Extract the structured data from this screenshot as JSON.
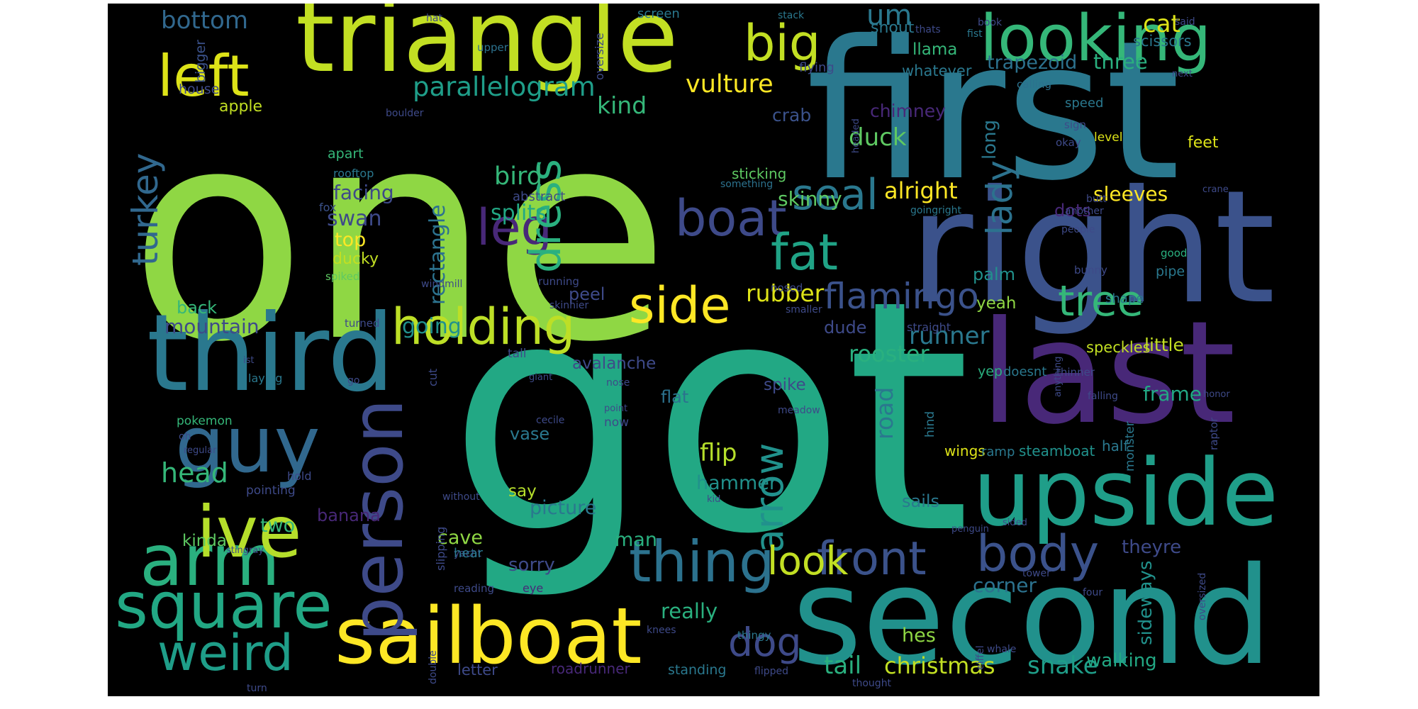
{
  "wordcloud": {
    "background": "#000000",
    "palette": "viridis",
    "words": [
      {
        "text": "one",
        "color": "#8fd744"
      },
      {
        "text": "got",
        "color": "#22a884"
      },
      {
        "text": "first",
        "color": "#2a788e"
      },
      {
        "text": "right",
        "color": "#3b528b"
      },
      {
        "text": "second",
        "color": "#21918c"
      },
      {
        "text": "last",
        "color": "#482878"
      },
      {
        "text": "triangle",
        "color": "#c2df23"
      },
      {
        "text": "third",
        "color": "#2a788e"
      },
      {
        "text": "upside",
        "color": "#1f9e89"
      },
      {
        "text": "guy",
        "color": "#31688e"
      },
      {
        "text": "sailboat",
        "color": "#fde725"
      },
      {
        "text": "looking",
        "color": "#35b779"
      },
      {
        "text": "square",
        "color": "#22a884"
      },
      {
        "text": "arm",
        "color": "#2ab07f"
      },
      {
        "text": "ive",
        "color": "#b5de2b"
      },
      {
        "text": "person",
        "color": "#3e4a89"
      },
      {
        "text": "big",
        "color": "#c2df23"
      },
      {
        "text": "left",
        "color": "#dde318"
      },
      {
        "text": "holding",
        "color": "#bddf26"
      },
      {
        "text": "thing",
        "color": "#2c728e"
      },
      {
        "text": "body",
        "color": "#3b528b"
      },
      {
        "text": "front",
        "color": "#3b528b"
      },
      {
        "text": "weird",
        "color": "#1f9e89"
      },
      {
        "text": "boat",
        "color": "#3e4a89"
      },
      {
        "text": "seal",
        "color": "#2a788e"
      },
      {
        "text": "fat",
        "color": "#20a386"
      },
      {
        "text": "side",
        "color": "#fde725"
      },
      {
        "text": "leg",
        "color": "#482878"
      },
      {
        "text": "dress",
        "color": "#2ab07f"
      },
      {
        "text": "arrow",
        "color": "#21918c"
      },
      {
        "text": "look",
        "color": "#c2df23"
      },
      {
        "text": "dog",
        "color": "#3e4a89"
      },
      {
        "text": "tree",
        "color": "#35b779"
      },
      {
        "text": "turkey",
        "color": "#31688e"
      },
      {
        "text": "flamingo",
        "color": "#3b528b"
      },
      {
        "text": "lady",
        "color": "#2c728e"
      },
      {
        "text": "parallelogram",
        "color": "#1f9e89"
      },
      {
        "text": "bottom",
        "color": "#31688e"
      },
      {
        "text": "vulture",
        "color": "#fde725"
      },
      {
        "text": "runner",
        "color": "#2a788e"
      },
      {
        "text": "rubber",
        "color": "#dde318"
      },
      {
        "text": "rooster",
        "color": "#2ab07f"
      },
      {
        "text": "road",
        "color": "#2a788e"
      },
      {
        "text": "christmas",
        "color": "#c2df23"
      },
      {
        "text": "snake",
        "color": "#1f9e89"
      },
      {
        "text": "tail",
        "color": "#2ab07f"
      },
      {
        "text": "head",
        "color": "#35b779"
      },
      {
        "text": "kind",
        "color": "#35b779"
      },
      {
        "text": "mountain",
        "color": "#3e4a89"
      },
      {
        "text": "rectangle",
        "color": "#2c728e"
      },
      {
        "text": "bird",
        "color": "#35b779"
      },
      {
        "text": "splits",
        "color": "#22a884"
      },
      {
        "text": "going",
        "color": "#21918c"
      },
      {
        "text": "duck",
        "color": "#5ec962"
      },
      {
        "text": "alright",
        "color": "#fde725"
      },
      {
        "text": "skinny",
        "color": "#5ec962"
      },
      {
        "text": "flip",
        "color": "#b5de2b"
      },
      {
        "text": "hammer",
        "color": "#21918c"
      },
      {
        "text": "picture",
        "color": "#2a788e"
      },
      {
        "text": "man",
        "color": "#2ab07f"
      },
      {
        "text": "cave",
        "color": "#8fd744"
      },
      {
        "text": "sorry",
        "color": "#3e4a89"
      },
      {
        "text": "really",
        "color": "#2ab07f"
      },
      {
        "text": "hes",
        "color": "#8fd744"
      },
      {
        "text": "corner",
        "color": "#2c728e"
      },
      {
        "text": "walking",
        "color": "#22a884"
      },
      {
        "text": "sideways",
        "color": "#21918c"
      },
      {
        "text": "theyre",
        "color": "#3e4a89"
      },
      {
        "text": "frame",
        "color": "#22a884"
      },
      {
        "text": "little",
        "color": "#c2df23"
      },
      {
        "text": "speckles",
        "color": "#c2df23"
      },
      {
        "text": "sleeves",
        "color": "#fde725"
      },
      {
        "text": "dots",
        "color": "#482878"
      },
      {
        "text": "cat",
        "color": "#dde318"
      },
      {
        "text": "scissors",
        "color": "#2a788e"
      },
      {
        "text": "three",
        "color": "#2ab07f"
      },
      {
        "text": "trapezoid",
        "color": "#2c728e"
      },
      {
        "text": "llama",
        "color": "#35b779"
      },
      {
        "text": "snout",
        "color": "#2a788e"
      },
      {
        "text": "whatever",
        "color": "#2a788e"
      },
      {
        "text": "chimney",
        "color": "#482878"
      },
      {
        "text": "crab",
        "color": "#3b528b"
      },
      {
        "text": "long",
        "color": "#2a788e"
      },
      {
        "text": "palm",
        "color": "#21918c"
      },
      {
        "text": "yeah",
        "color": "#8fd744"
      },
      {
        "text": "dude",
        "color": "#3e4a89"
      },
      {
        "text": "spike",
        "color": "#3e4a89"
      },
      {
        "text": "peel",
        "color": "#3e4a89"
      },
      {
        "text": "avalanche",
        "color": "#3e4a89"
      },
      {
        "text": "flat",
        "color": "#2c728e"
      },
      {
        "text": "vase",
        "color": "#2a788e"
      },
      {
        "text": "say",
        "color": "#b5de2b"
      },
      {
        "text": "banana",
        "color": "#482878"
      },
      {
        "text": "two",
        "color": "#35b779"
      },
      {
        "text": "kinda",
        "color": "#5ec962"
      },
      {
        "text": "back",
        "color": "#35b779"
      },
      {
        "text": "top",
        "color": "#fde725"
      },
      {
        "text": "swan",
        "color": "#3e4a89"
      },
      {
        "text": "facing",
        "color": "#3e4a89"
      },
      {
        "text": "ducky",
        "color": "#c2df23"
      },
      {
        "text": "apple",
        "color": "#c2df23"
      },
      {
        "text": "house",
        "color": "#3e4a89"
      },
      {
        "text": "bigger",
        "color": "#3b528b"
      },
      {
        "text": "apart",
        "color": "#35b779"
      },
      {
        "text": "rooftop",
        "color": "#2a788e"
      },
      {
        "text": "fox",
        "color": "#3b528b"
      },
      {
        "text": "spiked",
        "color": "#5ec962"
      },
      {
        "text": "abstract",
        "color": "#3e4a89"
      },
      {
        "text": "sticking",
        "color": "#5ec962"
      },
      {
        "text": "something",
        "color": "#2c728e"
      },
      {
        "text": "flying",
        "color": "#3e4a89"
      },
      {
        "text": "upper",
        "color": "#2c728e"
      },
      {
        "text": "oversize",
        "color": "#3e4a89"
      },
      {
        "text": "screen",
        "color": "#2a788e"
      },
      {
        "text": "stack",
        "color": "#2a788e"
      },
      {
        "text": "hat",
        "color": "#3e4a89"
      },
      {
        "text": "book",
        "color": "#3e4a89"
      },
      {
        "text": "thats",
        "color": "#3e4a89"
      },
      {
        "text": "fist",
        "color": "#2a788e"
      },
      {
        "text": "said",
        "color": "#3e4a89"
      },
      {
        "text": "next",
        "color": "#3e4a89"
      },
      {
        "text": "calling",
        "color": "#2c728e"
      },
      {
        "text": "boulder",
        "color": "#3e4a89"
      },
      {
        "text": "headed",
        "color": "#3e4a89"
      },
      {
        "text": "level",
        "color": "#dde318"
      },
      {
        "text": "speed",
        "color": "#2a788e"
      },
      {
        "text": "sign",
        "color": "#3e4a89"
      },
      {
        "text": "okay",
        "color": "#3e4a89"
      },
      {
        "text": "feet",
        "color": "#dde318"
      },
      {
        "text": "crane",
        "color": "#3e4a89"
      },
      {
        "text": "butt",
        "color": "#3e4a89"
      },
      {
        "text": "goingright",
        "color": "#2a788e"
      },
      {
        "text": "another",
        "color": "#3e4a89"
      },
      {
        "text": "people",
        "color": "#3e4a89"
      },
      {
        "text": "bunny",
        "color": "#3e4a89"
      },
      {
        "text": "good",
        "color": "#2ab07f"
      },
      {
        "text": "pipe",
        "color": "#2a788e"
      },
      {
        "text": "nosed",
        "color": "#3e4a89"
      },
      {
        "text": "running",
        "color": "#3e4a89"
      },
      {
        "text": "skinnier",
        "color": "#3e4a89"
      },
      {
        "text": "windmill",
        "color": "#3e4a89"
      },
      {
        "text": "smaller",
        "color": "#3e4a89"
      },
      {
        "text": "turned",
        "color": "#3e4a89"
      },
      {
        "text": "straight",
        "color": "#3e4a89"
      },
      {
        "text": "shape",
        "color": "#2a788e"
      },
      {
        "text": "ist",
        "color": "#3e4a89"
      },
      {
        "text": "tall",
        "color": "#3e4a89"
      },
      {
        "text": "laying",
        "color": "#2a788e"
      },
      {
        "text": "cut",
        "color": "#3e4a89"
      },
      {
        "text": "giant",
        "color": "#3e4a89"
      },
      {
        "text": "go",
        "color": "#3e4a89"
      },
      {
        "text": "nose",
        "color": "#3e4a89"
      },
      {
        "text": "yep",
        "color": "#2ab07f"
      },
      {
        "text": "doesnt",
        "color": "#2a788e"
      },
      {
        "text": "thinner",
        "color": "#3e4a89"
      },
      {
        "text": "anything",
        "color": "#3e4a89"
      },
      {
        "text": "falling",
        "color": "#3e4a89"
      },
      {
        "text": "honor",
        "color": "#3e4a89"
      },
      {
        "text": "raptor",
        "color": "#3e4a89"
      },
      {
        "text": "monster",
        "color": "#2a788e"
      },
      {
        "text": "hind",
        "color": "#2a788e"
      },
      {
        "text": "meadow",
        "color": "#3e4a89"
      },
      {
        "text": "pokemon",
        "color": "#35b779"
      },
      {
        "text": "oh",
        "color": "#3e4a89"
      },
      {
        "text": "regular",
        "color": "#3e4a89"
      },
      {
        "text": "cecile",
        "color": "#3e4a89"
      },
      {
        "text": "point",
        "color": "#3e4a89"
      },
      {
        "text": "now",
        "color": "#3e4a89"
      },
      {
        "text": "wings",
        "color": "#dde318"
      },
      {
        "text": "ramp",
        "color": "#2a788e"
      },
      {
        "text": "steamboat",
        "color": "#21918c"
      },
      {
        "text": "half",
        "color": "#2a788e"
      },
      {
        "text": "hold",
        "color": "#3e4a89"
      },
      {
        "text": "pointing",
        "color": "#3e4a89"
      },
      {
        "text": "sails",
        "color": "#2a788e"
      },
      {
        "text": "without",
        "color": "#3e4a89"
      },
      {
        "text": "kid",
        "color": "#3e4a89"
      },
      {
        "text": "stingray",
        "color": "#3e4a89"
      },
      {
        "text": "slipping",
        "color": "#3e4a89"
      },
      {
        "text": "yacht",
        "color": "#3e4a89"
      },
      {
        "text": "penguin",
        "color": "#3e4a89"
      },
      {
        "text": "sided",
        "color": "#3e4a89"
      },
      {
        "text": "hear",
        "color": "#2a788e"
      },
      {
        "text": "eye",
        "color": "#482878"
      },
      {
        "text": "oversized",
        "color": "#3e4a89"
      },
      {
        "text": "reading",
        "color": "#3e4a89"
      },
      {
        "text": "tower",
        "color": "#3e4a89"
      },
      {
        "text": "four",
        "color": "#3e4a89"
      },
      {
        "text": "knees",
        "color": "#3e4a89"
      },
      {
        "text": "thingy",
        "color": "#2a788e"
      },
      {
        "text": "eiffel",
        "color": "#3e4a89"
      },
      {
        "text": "whale",
        "color": "#3e4a89"
      },
      {
        "text": "double",
        "color": "#3e4a89"
      },
      {
        "text": "letter",
        "color": "#3e4a89"
      },
      {
        "text": "roadrunner",
        "color": "#482878"
      },
      {
        "text": "standing",
        "color": "#2a788e"
      },
      {
        "text": "flipped",
        "color": "#3e4a89"
      },
      {
        "text": "thought",
        "color": "#3e4a89"
      },
      {
        "text": "turn",
        "color": "#3e4a89"
      },
      {
        "text": "um",
        "color": "#2a788e"
      }
    ]
  }
}
